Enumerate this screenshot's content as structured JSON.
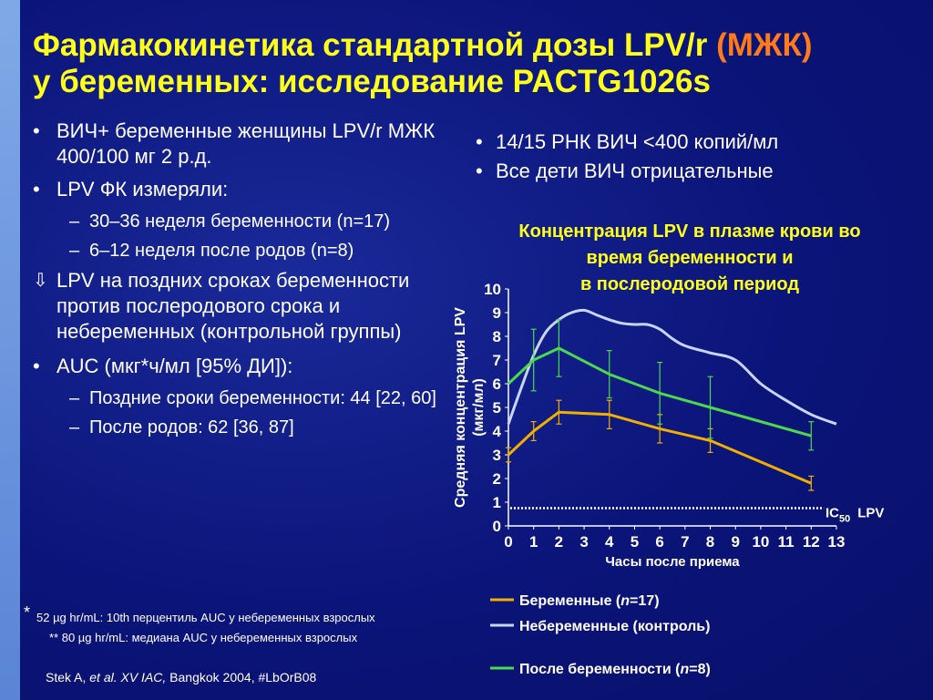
{
  "title": {
    "line1_pre": "Фармакокинетика стандартной дозы LPV/r ",
    "line1_accent": "(МЖК)",
    "line2": "у беременных: исследование PACTG1026s"
  },
  "left": {
    "b1": "ВИЧ+ беременные женщины LPV/r МЖК 400/100 мг 2 р.д.",
    "b2": "LPV ФК измеряли:",
    "b2_sub1": "30–36 неделя беременности (n=17)",
    "b2_sub2": "6–12 неделя после родов (n=8)",
    "arrow_symbol": "⇩",
    "arrow_text": "LPV на поздних сроках беременности против послеродового срока и небеременных (контрольной группы)",
    "b3": "AUC (мкг*ч/мл [95% ДИ]):",
    "b3_sub1": "Поздние сроки беременности: 44 [22, 60]",
    "b3_sub2": "После родов: 62 [36, 87]"
  },
  "right": {
    "b1": "14/15 РНК ВИЧ <400 копий/мл",
    "b2": "Все дети ВИЧ отрицательные"
  },
  "chart_title_lines": [
    "Концентрация LPV в плазме крови во",
    "время беременности и",
    "в послеродовой период"
  ],
  "footnotes": {
    "star": "*",
    "line1": "52 µg hr/mL: 10th перцентиль AUC у небеременных взрослых",
    "line2": "** 80 µg hr/mL: медиана AUC у небеременных взрослых"
  },
  "citation": {
    "author": "Stek A, ",
    "journal": "et al. XV IAC,",
    "rest": " Bangkok 2004, #LbOrB08"
  },
  "colors": {
    "pregnant": "#f0b000",
    "control": "#c8d4f4",
    "postpartum": "#4cd94c",
    "ic50_line": "#ffffff"
  },
  "chart_data": {
    "type": "line",
    "xlabel": "Часы после приема",
    "ylabel_line1": "Средняя концентрация  LPV",
    "ylabel_line2": "(мкг/мл)",
    "xlim": [
      0,
      13
    ],
    "ylim": [
      0,
      10
    ],
    "xticks": [
      "0",
      "1",
      "2",
      "3",
      "4",
      "5",
      "6",
      "7",
      "8",
      "9",
      "10",
      "11",
      "12",
      "13"
    ],
    "yticks": [
      "0",
      "1",
      "2",
      "3",
      "4",
      "5",
      "6",
      "7",
      "8",
      "9",
      "10"
    ],
    "reference_line": {
      "label_main": "IC",
      "label_sub": "50",
      "label_after": "LPV",
      "y": 0.75
    },
    "series": [
      {
        "name_pre": "Беременные (",
        "name_n": "n",
        "name_post": "=17)",
        "color_key": "pregnant",
        "x": [
          0,
          1,
          2,
          4,
          6,
          8,
          12
        ],
        "y": [
          3.0,
          4.0,
          4.8,
          4.7,
          4.1,
          3.6,
          1.8
        ],
        "err": [
          0.3,
          0.4,
          0.5,
          0.6,
          0.6,
          0.5,
          0.3
        ]
      },
      {
        "name_pre": "Небеременные (контроль)",
        "name_n": "",
        "name_post": "",
        "color_key": "control",
        "x": [
          0,
          0.5,
          1,
          1.5,
          2,
          2.5,
          3,
          3.5,
          4,
          4.5,
          5,
          5.5,
          6,
          6.5,
          7,
          8,
          9,
          10,
          11,
          12,
          13
        ],
        "y": [
          4.3,
          5.8,
          7.2,
          8.2,
          8.7,
          9.0,
          9.1,
          8.9,
          8.7,
          8.55,
          8.5,
          8.5,
          8.3,
          7.9,
          7.6,
          7.3,
          7.0,
          6.0,
          5.3,
          4.7,
          4.3
        ],
        "err": []
      },
      {
        "name_pre": "После беременности (",
        "name_n": "n",
        "name_post": "=8)",
        "color_key": "postpartum",
        "x": [
          0,
          1,
          2,
          4,
          6,
          8,
          12
        ],
        "y": [
          6.0,
          7.0,
          7.5,
          6.4,
          5.6,
          5.0,
          3.8
        ],
        "err": [
          0.0,
          1.3,
          1.2,
          1.0,
          1.3,
          1.3,
          0.6
        ]
      }
    ]
  }
}
